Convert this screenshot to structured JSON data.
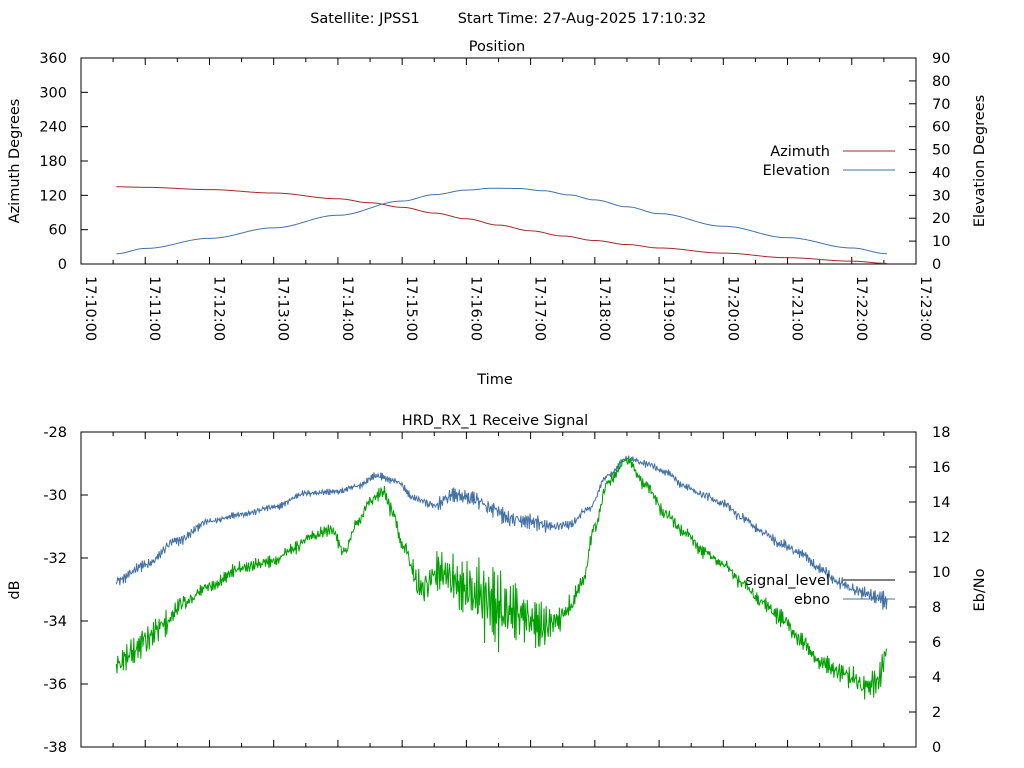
{
  "header": {
    "satellite": "Satellite: JPSS1",
    "start_time": "Start Time: 27-Aug-2025 17:10:32"
  },
  "chart_data": [
    {
      "type": "line",
      "title": "Position",
      "xlabel": "Time",
      "ylabel": "Azimuth Degrees",
      "y2label": "Elevation Degrees",
      "x_tick_labels": [
        "17:10:00",
        "17:11:00",
        "17:12:00",
        "17:13:00",
        "17:14:00",
        "17:15:00",
        "17:16:00",
        "17:17:00",
        "17:18:00",
        "17:19:00",
        "17:20:00",
        "17:21:00",
        "17:22:00",
        "17:23:00"
      ],
      "xlim_minutes": [
        0,
        13
      ],
      "ylim": [
        0,
        360
      ],
      "y_ticks": [
        0,
        60,
        120,
        180,
        240,
        300,
        360
      ],
      "y2lim": [
        0,
        90
      ],
      "y2_ticks": [
        0,
        10,
        20,
        30,
        40,
        50,
        60,
        70,
        80,
        90
      ],
      "legend_position": "right",
      "grid": false,
      "series": [
        {
          "name": "Azimuth",
          "axis": "left",
          "color": "#a52a2a",
          "x_minutes": [
            0.55,
            1.0,
            2.0,
            3.0,
            4.0,
            4.5,
            5.0,
            5.5,
            6.0,
            6.5,
            7.0,
            7.5,
            8.0,
            8.5,
            9.0,
            10.0,
            11.0,
            12.0,
            12.55
          ],
          "values": [
            135,
            134,
            130,
            124,
            114,
            107,
            99,
            89,
            79,
            68,
            58,
            49,
            41,
            34,
            28,
            19,
            11,
            5,
            1
          ]
        },
        {
          "name": "Elevation",
          "axis": "right",
          "color": "#4472a6",
          "x_minutes": [
            0.55,
            1.0,
            2.0,
            3.0,
            4.0,
            5.0,
            5.5,
            6.0,
            6.4,
            6.8,
            7.2,
            7.6,
            8.0,
            8.5,
            9.0,
            10.0,
            11.0,
            12.0,
            12.55
          ],
          "values": [
            4.5,
            6.8,
            11.2,
            15.8,
            21.3,
            27.5,
            30.3,
            32.3,
            33.1,
            33.0,
            32.0,
            30.2,
            28.0,
            25.0,
            22.0,
            16.5,
            11.5,
            7.0,
            4.5
          ]
        }
      ]
    },
    {
      "type": "line",
      "title": "HRD_RX_1 Receive Signal",
      "ylabel": "dB",
      "y2label": "Eb/No",
      "xlim_minutes": [
        0,
        13
      ],
      "ylim": [
        -38,
        -28
      ],
      "y_ticks": [
        -38,
        -36,
        -34,
        -32,
        -30,
        -28
      ],
      "y2lim": [
        0,
        18
      ],
      "y2_ticks": [
        0,
        2,
        4,
        6,
        8,
        10,
        12,
        14,
        16,
        18
      ],
      "legend_position": "right",
      "grid": false,
      "series": [
        {
          "name": "signal_level",
          "axis": "left",
          "color": "#00a000",
          "noise": 0.15,
          "x_minutes": [
            0.55,
            0.8,
            1.0,
            1.3,
            1.6,
            2.0,
            2.5,
            3.0,
            3.3,
            3.6,
            3.9,
            4.1,
            4.3,
            4.5,
            4.7,
            4.85,
            5.0,
            5.3,
            5.6,
            5.9,
            6.2,
            6.5,
            6.8,
            7.0,
            7.2,
            7.4,
            7.6,
            7.8,
            8.0,
            8.2,
            8.5,
            8.8,
            9.1,
            9.4,
            9.7,
            10.0,
            10.3,
            10.6,
            10.9,
            11.2,
            11.5,
            11.8,
            12.0,
            12.2,
            12.4,
            12.55
          ],
          "values": [
            -35.4,
            -35.0,
            -34.6,
            -34.1,
            -33.4,
            -32.9,
            -32.3,
            -32.1,
            -31.7,
            -31.3,
            -31.1,
            -31.8,
            -30.9,
            -30.2,
            -29.9,
            -30.5,
            -31.6,
            -33.0,
            -32.4,
            -32.9,
            -33.2,
            -33.6,
            -33.8,
            -34.0,
            -34.2,
            -34.0,
            -33.6,
            -32.8,
            -31.0,
            -29.6,
            -28.9,
            -29.7,
            -30.6,
            -31.2,
            -31.8,
            -32.2,
            -32.8,
            -33.4,
            -33.9,
            -34.6,
            -35.3,
            -35.6,
            -35.8,
            -36.1,
            -35.9,
            -35.0
          ],
          "amplitude_x": [
            0.55,
            1.0,
            1.3,
            1.6,
            2.0,
            4.5,
            5.0,
            5.5,
            6.0,
            6.3,
            6.7,
            7.0,
            7.5,
            8.0,
            10.0,
            11.5,
            12.55
          ],
          "amplitude": [
            0.5,
            0.6,
            0.45,
            0.3,
            0.2,
            0.2,
            0.3,
            0.7,
            1.0,
            1.4,
            1.4,
            0.9,
            0.4,
            0.2,
            0.2,
            0.3,
            0.45
          ]
        },
        {
          "name": "ebno",
          "axis": "right",
          "color": "#4472a6",
          "noise": 0.15,
          "x_minutes": [
            0.55,
            1.0,
            1.5,
            2.0,
            2.5,
            3.0,
            3.5,
            4.0,
            4.3,
            4.6,
            4.9,
            5.2,
            5.5,
            5.8,
            6.1,
            6.4,
            6.7,
            7.0,
            7.3,
            7.6,
            7.9,
            8.2,
            8.5,
            8.8,
            9.1,
            9.4,
            9.7,
            10.0,
            10.3,
            10.6,
            10.9,
            11.2,
            11.5,
            11.8,
            12.1,
            12.4,
            12.55
          ],
          "values": [
            9.5,
            10.4,
            11.8,
            12.9,
            13.3,
            13.7,
            14.5,
            14.6,
            14.9,
            15.5,
            15.2,
            14.2,
            13.8,
            14.4,
            14.2,
            13.6,
            13.0,
            12.9,
            12.6,
            12.7,
            13.6,
            15.5,
            16.5,
            16.2,
            15.7,
            14.9,
            14.4,
            13.9,
            13.1,
            12.3,
            11.6,
            11.1,
            10.2,
            9.4,
            8.9,
            8.6,
            8.3
          ],
          "amplitude_x": [
            0.55,
            1.5,
            2.0,
            5.0,
            6.0,
            7.0,
            8.0,
            11.5,
            12.55
          ],
          "amplitude": [
            0.3,
            0.35,
            0.2,
            0.2,
            0.5,
            0.5,
            0.2,
            0.3,
            0.5
          ]
        }
      ]
    }
  ]
}
